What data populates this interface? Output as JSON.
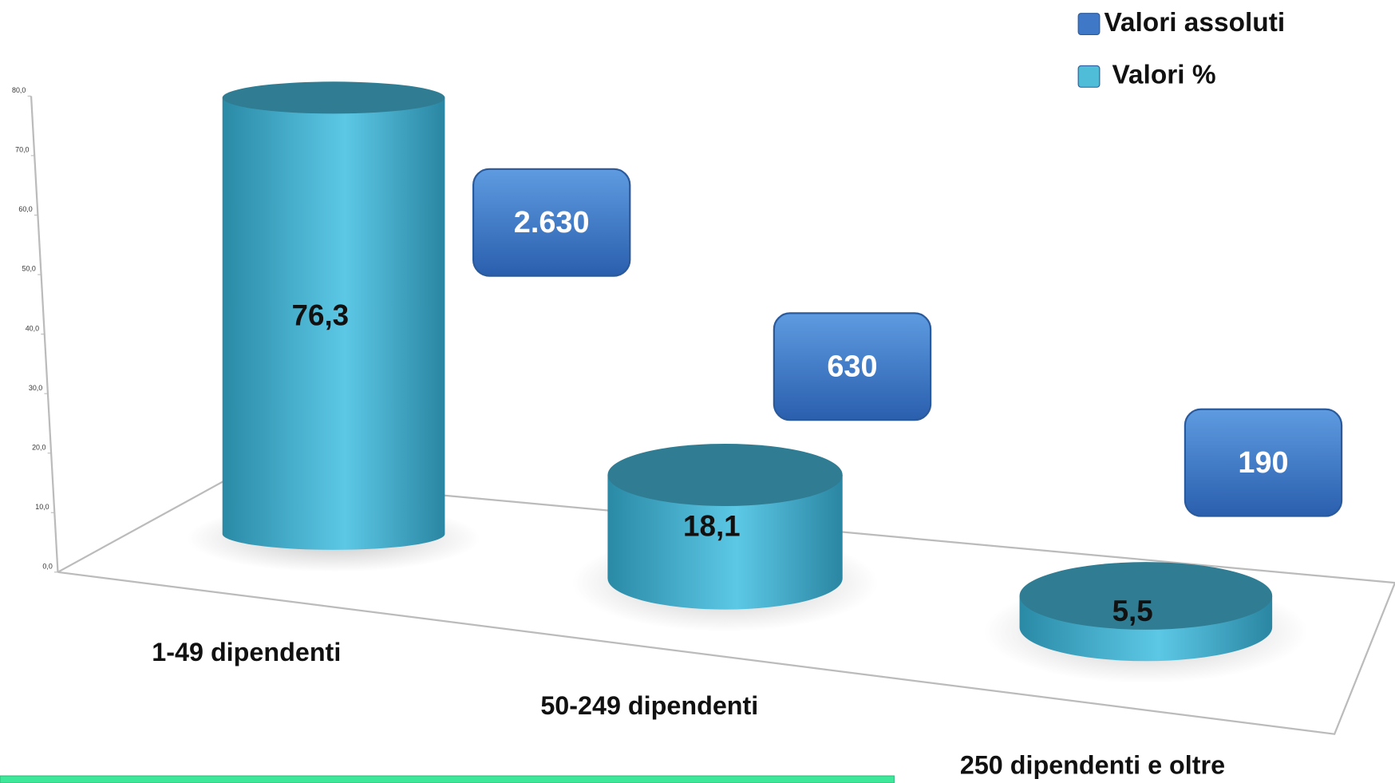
{
  "chart_data": {
    "type": "bar",
    "categories": [
      "1-49 dipendenti",
      "50-249 dipendenti",
      "250 dipendenti  e oltre"
    ],
    "series": [
      {
        "name": "Valori assoluti",
        "color": "#3f78c6",
        "values": [
          2630,
          630,
          190
        ],
        "value_labels": [
          "2.630",
          "630",
          "190"
        ]
      },
      {
        "name": "Valori %",
        "color": "#4fbcd8",
        "values": [
          76.3,
          18.1,
          5.5
        ],
        "value_labels": [
          "76,3",
          "18,1",
          "5,5"
        ]
      }
    ],
    "ylim": [
      0,
      80
    ],
    "yticks": [
      {
        "value": 0,
        "label": "0,0"
      },
      {
        "value": 10,
        "label": "10,0"
      },
      {
        "value": 20,
        "label": "20,0"
      },
      {
        "value": 30,
        "label": "30,0"
      },
      {
        "value": 40,
        "label": "40,0"
      },
      {
        "value": 50,
        "label": "50,0"
      },
      {
        "value": 60,
        "label": "60,0"
      },
      {
        "value": 70,
        "label": "70,0"
      },
      {
        "value": 80,
        "label": "80,0"
      }
    ]
  }
}
